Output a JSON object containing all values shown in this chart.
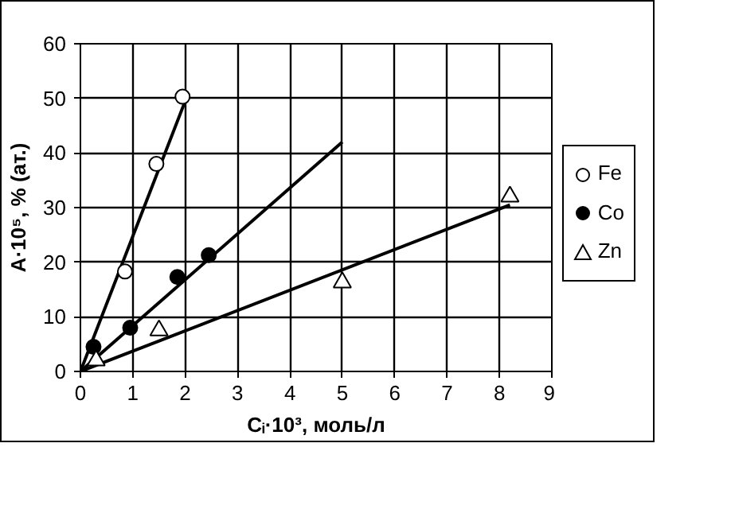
{
  "chart_data": {
    "type": "scatter",
    "xlabel": "Cᵢ·10³, моль/л",
    "ylabel": "A·10⁵, % (ат.)",
    "xlim": [
      0,
      9
    ],
    "ylim": [
      0,
      60
    ],
    "xticks": [
      0,
      1,
      2,
      3,
      4,
      5,
      6,
      7,
      8,
      9
    ],
    "yticks": [
      0,
      10,
      20,
      30,
      40,
      50,
      60
    ],
    "grid": true,
    "legend": "right",
    "series": [
      {
        "name": "Fe",
        "color": "#ffffff",
        "marker": "circle",
        "x": [
          0.85,
          1.45,
          1.95
        ],
        "values": [
          18.3,
          38,
          50.3
        ]
      },
      {
        "name": "Co",
        "color": "#000000",
        "marker": "circle",
        "x": [
          0.25,
          0.95,
          1.85,
          2.45
        ],
        "values": [
          4.5,
          8,
          17.3,
          21.3
        ]
      },
      {
        "name": "Zn",
        "color": "#ffffff",
        "marker": "triangle",
        "x": [
          0.3,
          1.5,
          5,
          8.2
        ],
        "values": [
          2,
          7.5,
          16.3,
          32
        ]
      },
      {
        "type": "line",
        "color": "#000000",
        "marker": "none",
        "x": [
          0,
          2
        ],
        "values": [
          0,
          49.5
        ]
      },
      {
        "type": "line",
        "color": "#000000",
        "marker": "none",
        "x": [
          0,
          5
        ],
        "values": [
          0,
          42
        ]
      },
      {
        "type": "line",
        "color": "#000000",
        "marker": "none",
        "x": [
          0,
          8.2
        ],
        "values": [
          0,
          30.5
        ]
      }
    ]
  }
}
